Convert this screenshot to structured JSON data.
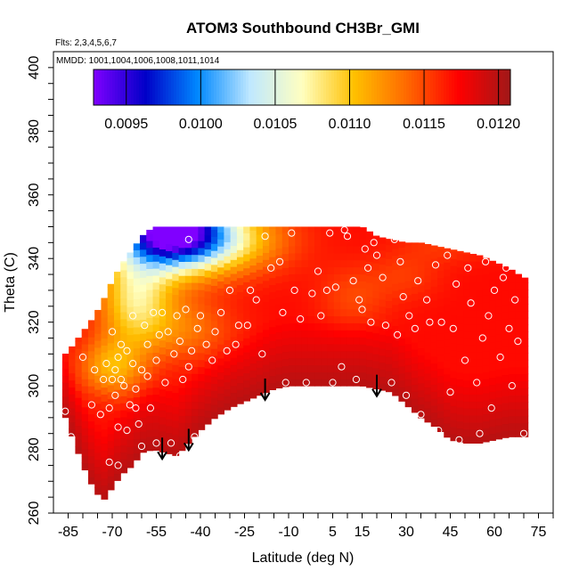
{
  "chart_data": {
    "type": "heatmap",
    "title": "ATOM3 Southbound CH3Br_GMI",
    "annotations": [
      "Flts: 2,3,4,5,6,7",
      "MMDD: 1001,1004,1006,1008,1011,1014"
    ],
    "xlabel": "Latitude (deg N)",
    "ylabel": "Theta (C)",
    "xlim": [
      -90,
      80
    ],
    "ylim": [
      260,
      405
    ],
    "x_ticks": [
      -85,
      -70,
      -55,
      -40,
      -25,
      -10,
      5,
      15,
      30,
      45,
      60,
      75
    ],
    "y_ticks": [
      260,
      280,
      300,
      320,
      340,
      360,
      380,
      400
    ],
    "colorbar": {
      "min": 0.00928,
      "max": 0.01208,
      "ticks": [
        0.0095,
        0.01,
        0.0105,
        0.011,
        0.0115,
        0.012
      ],
      "tick_labels": [
        "0.0095",
        "0.0100",
        "0.0105",
        "0.0110",
        "0.0115",
        "0.0120"
      ],
      "colors": [
        "#8000ff",
        "#0000c8",
        "#0088ff",
        "#bfe8ff",
        "#ffffc0",
        "#ffc000",
        "#ff6a00",
        "#ff0000",
        "#a01818"
      ]
    },
    "field_extent": {
      "x": [
        -87,
        -84,
        -80,
        -76,
        -73,
        -70,
        -67,
        -63,
        -60,
        -56,
        -52,
        -48,
        -44,
        -40,
        -35,
        -30,
        -25,
        -20,
        -15,
        -10,
        -5,
        0,
        5,
        10,
        15,
        20,
        25,
        30,
        35,
        40,
        45,
        50,
        55,
        60,
        65,
        70
      ],
      "top": [
        309,
        312,
        317,
        322,
        327,
        333,
        338,
        343,
        347,
        350,
        350,
        350,
        350,
        350,
        350,
        350,
        350,
        350,
        350,
        350,
        350,
        350,
        350,
        350,
        350,
        347,
        346,
        345,
        345,
        344,
        343,
        342,
        341,
        339,
        337,
        334
      ],
      "bottom": [
        293,
        285,
        275,
        267,
        264,
        268,
        272,
        275,
        279,
        280,
        279,
        278,
        282,
        286,
        290,
        293,
        295,
        297,
        299,
        300,
        300,
        300,
        300,
        300,
        300,
        299,
        298,
        294,
        290,
        287,
        283,
        282,
        282,
        283,
        284,
        284
      ]
    },
    "arrows_lat": [
      -53,
      -44,
      -18,
      20
    ],
    "observations": [
      [
        -86,
        292
      ],
      [
        -84,
        284
      ],
      [
        -80,
        309
      ],
      [
        -77,
        294
      ],
      [
        -76,
        305
      ],
      [
        -74,
        291
      ],
      [
        -73,
        302
      ],
      [
        -72,
        307
      ],
      [
        -71,
        276
      ],
      [
        -71,
        293
      ],
      [
        -70,
        302
      ],
      [
        -70,
        317
      ],
      [
        -69,
        297
      ],
      [
        -69,
        305
      ],
      [
        -68,
        275
      ],
      [
        -68,
        287
      ],
      [
        -68,
        309
      ],
      [
        -67,
        302
      ],
      [
        -67,
        313
      ],
      [
        -66,
        300
      ],
      [
        -65,
        286
      ],
      [
        -65,
        311
      ],
      [
        -64,
        294
      ],
      [
        -63,
        322
      ],
      [
        -63,
        307
      ],
      [
        -62,
        299
      ],
      [
        -62,
        293
      ],
      [
        -61,
        288
      ],
      [
        -60,
        305
      ],
      [
        -60,
        281
      ],
      [
        -59,
        319
      ],
      [
        -58,
        313
      ],
      [
        -58,
        303
      ],
      [
        -57,
        293
      ],
      [
        -56,
        323
      ],
      [
        -55,
        308
      ],
      [
        -55,
        282
      ],
      [
        -54,
        316
      ],
      [
        -53,
        323
      ],
      [
        -52,
        301
      ],
      [
        -51,
        317
      ],
      [
        -50,
        282
      ],
      [
        -49,
        310
      ],
      [
        -48,
        322
      ],
      [
        -47,
        278
      ],
      [
        -47,
        314
      ],
      [
        -46,
        302
      ],
      [
        -45,
        324
      ],
      [
        -44,
        346
      ],
      [
        -44,
        306
      ],
      [
        -43,
        311
      ],
      [
        -42,
        284
      ],
      [
        -41,
        318
      ],
      [
        -40,
        322
      ],
      [
        -38,
        313
      ],
      [
        -36,
        308
      ],
      [
        -35,
        317
      ],
      [
        -33,
        323
      ],
      [
        -31,
        311
      ],
      [
        -30,
        330
      ],
      [
        -28,
        313
      ],
      [
        -27,
        319
      ],
      [
        -26,
        293
      ],
      [
        -24,
        319
      ],
      [
        -23,
        330
      ],
      [
        -21,
        327
      ],
      [
        -19,
        310
      ],
      [
        -18,
        347
      ],
      [
        -16,
        337
      ],
      [
        -13,
        339
      ],
      [
        -12,
        323
      ],
      [
        -11,
        301
      ],
      [
        -9,
        348
      ],
      [
        -8,
        330
      ],
      [
        -6,
        321
      ],
      [
        -4,
        301
      ],
      [
        -2,
        329
      ],
      [
        0,
        336
      ],
      [
        1,
        322
      ],
      [
        3,
        330
      ],
      [
        4,
        348
      ],
      [
        5,
        301
      ],
      [
        6,
        331
      ],
      [
        8,
        306
      ],
      [
        9,
        349
      ],
      [
        10,
        347
      ],
      [
        12,
        333
      ],
      [
        13,
        302
      ],
      [
        14,
        327
      ],
      [
        15,
        324
      ],
      [
        16,
        343
      ],
      [
        17,
        337
      ],
      [
        18,
        320
      ],
      [
        19,
        345
      ],
      [
        20,
        341
      ],
      [
        22,
        334
      ],
      [
        23,
        319
      ],
      [
        25,
        301
      ],
      [
        26,
        346
      ],
      [
        27,
        316
      ],
      [
        28,
        339
      ],
      [
        29,
        328
      ],
      [
        30,
        297
      ],
      [
        31,
        322
      ],
      [
        33,
        318
      ],
      [
        34,
        333
      ],
      [
        35,
        291
      ],
      [
        37,
        327
      ],
      [
        38,
        320
      ],
      [
        40,
        338
      ],
      [
        41,
        286
      ],
      [
        42,
        320
      ],
      [
        44,
        341
      ],
      [
        45,
        298
      ],
      [
        46,
        318
      ],
      [
        47,
        332
      ],
      [
        48,
        283
      ],
      [
        50,
        308
      ],
      [
        51,
        337
      ],
      [
        52,
        326
      ],
      [
        54,
        301
      ],
      [
        55,
        285
      ],
      [
        56,
        315
      ],
      [
        57,
        339
      ],
      [
        58,
        322
      ],
      [
        59,
        293
      ],
      [
        60,
        330
      ],
      [
        62,
        309
      ],
      [
        63,
        334
      ],
      [
        64,
        337
      ],
      [
        65,
        318
      ],
      [
        66,
        300
      ],
      [
        67,
        327
      ],
      [
        68,
        314
      ],
      [
        70,
        285
      ]
    ]
  }
}
